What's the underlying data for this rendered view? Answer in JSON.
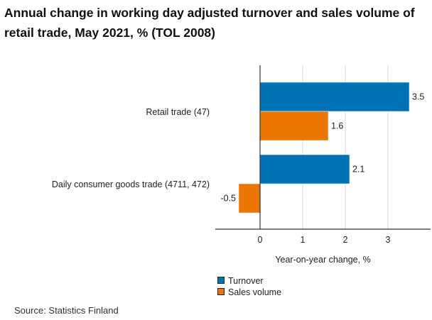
{
  "title": "Annual change in working day adjusted turnover and sales volume of retail trade, May 2021, % (TOL 2008)",
  "source": "Source: Statistics Finland",
  "chart_data": {
    "type": "bar",
    "orientation": "horizontal",
    "title": "Annual change in working day adjusted turnover and sales volume of retail trade, May 2021, % (TOL 2008)",
    "categories": [
      "Retail trade (47)",
      "Daily consumer goods trade (4711, 472)"
    ],
    "series": [
      {
        "name": "Turnover",
        "values": [
          3.5,
          2.1
        ],
        "color": "#0072b5"
      },
      {
        "name": "Sales volume",
        "values": [
          1.6,
          -0.5
        ],
        "color": "#ea7500"
      }
    ],
    "data_labels": [
      [
        "3.5",
        "2.1"
      ],
      [
        "1.6",
        "-0.5"
      ]
    ],
    "xlabel": "Year-on-year change, %",
    "ylabel": "",
    "xlim": [
      -1.05,
      4.0
    ],
    "xticks": [
      0,
      1,
      2,
      3
    ],
    "xtick_labels": [
      "0",
      "1",
      "2",
      "3"
    ],
    "grid": "vertical",
    "legend": "bottom"
  }
}
